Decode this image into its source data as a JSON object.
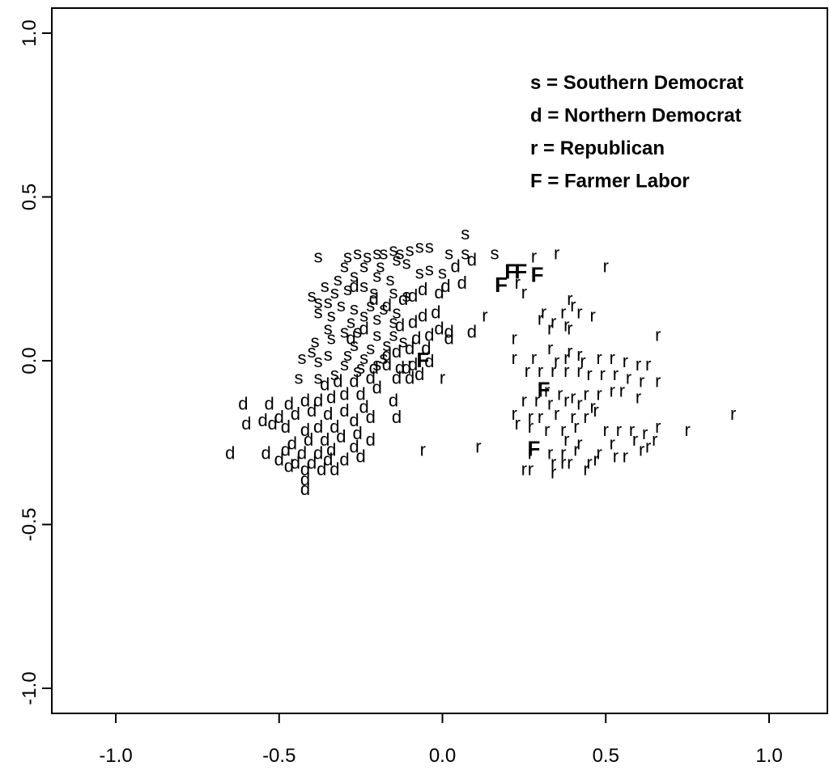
{
  "chart_data": {
    "type": "scatter",
    "title": "",
    "xlabel": "",
    "ylabel": "",
    "xlim": [
      -1.2,
      1.2
    ],
    "ylim": [
      -1.08,
      1.08
    ],
    "x_ticks": [
      "-1.0",
      "-0.5",
      "0.0",
      "0.5",
      "1.0"
    ],
    "y_ticks": [
      "1.0",
      "0.5",
      "0.0",
      "-0.5",
      "-1.0"
    ],
    "x_tick_values": [
      -1.0,
      -0.5,
      0.0,
      0.5,
      1.0
    ],
    "y_tick_values": [
      1.0,
      0.5,
      0.0,
      -0.5,
      -1.0
    ],
    "grid": false,
    "legend_position": "top-right",
    "legend": [
      {
        "symbol": "s",
        "label": "s = Southern Democrat"
      },
      {
        "symbol": "d",
        "label": "d = Northern Democrat"
      },
      {
        "symbol": "r",
        "label": "r = Republican"
      },
      {
        "symbol": "F",
        "label": "F = Farmer Labor"
      }
    ],
    "series": [
      {
        "symbol": "s",
        "points": [
          [
            0.07,
            0.39
          ],
          [
            0.16,
            0.33
          ],
          [
            0.07,
            0.33
          ],
          [
            0.02,
            0.33
          ],
          [
            -0.04,
            0.35
          ],
          [
            -0.07,
            0.35
          ],
          [
            -0.1,
            0.34
          ],
          [
            -0.13,
            0.33
          ],
          [
            -0.15,
            0.34
          ],
          [
            -0.18,
            0.33
          ],
          [
            -0.2,
            0.33
          ],
          [
            -0.23,
            0.32
          ],
          [
            -0.26,
            0.33
          ],
          [
            -0.29,
            0.32
          ],
          [
            -0.38,
            0.32
          ],
          [
            -0.3,
            0.29
          ],
          [
            -0.24,
            0.29
          ],
          [
            -0.19,
            0.29
          ],
          [
            -0.14,
            0.31
          ],
          [
            -0.11,
            0.3
          ],
          [
            -0.07,
            0.27
          ],
          [
            -0.04,
            0.28
          ],
          [
            0.0,
            0.27
          ],
          [
            -0.32,
            0.25
          ],
          [
            -0.27,
            0.26
          ],
          [
            -0.2,
            0.26
          ],
          [
            -0.16,
            0.25
          ],
          [
            -0.36,
            0.23
          ],
          [
            -0.33,
            0.21
          ],
          [
            -0.29,
            0.22
          ],
          [
            -0.24,
            0.23
          ],
          [
            -0.21,
            0.21
          ],
          [
            -0.15,
            0.21
          ],
          [
            -0.11,
            0.2
          ],
          [
            -0.4,
            0.2
          ],
          [
            -0.38,
            0.18
          ],
          [
            -0.35,
            0.18
          ],
          [
            -0.31,
            0.17
          ],
          [
            -0.27,
            0.16
          ],
          [
            -0.22,
            0.17
          ],
          [
            -0.18,
            0.16
          ],
          [
            -0.14,
            0.15
          ],
          [
            -0.38,
            0.15
          ],
          [
            -0.34,
            0.14
          ],
          [
            -0.28,
            0.12
          ],
          [
            -0.24,
            0.14
          ],
          [
            -0.2,
            0.13
          ],
          [
            -0.15,
            0.12
          ],
          [
            -0.35,
            0.1
          ],
          [
            -0.3,
            0.09
          ],
          [
            -0.26,
            0.09
          ],
          [
            -0.2,
            0.08
          ],
          [
            -0.15,
            0.08
          ],
          [
            -0.39,
            0.06
          ],
          [
            -0.34,
            0.07
          ],
          [
            -0.27,
            0.05
          ],
          [
            -0.22,
            0.04
          ],
          [
            -0.17,
            0.05
          ],
          [
            -0.12,
            0.06
          ],
          [
            -0.4,
            0.03
          ],
          [
            -0.35,
            0.02
          ],
          [
            -0.29,
            0.02
          ],
          [
            -0.24,
            0.01
          ],
          [
            -0.18,
            0.01
          ],
          [
            -0.43,
            0.01
          ],
          [
            -0.38,
            0.0
          ],
          [
            -0.3,
            -0.01
          ],
          [
            -0.25,
            -0.02
          ],
          [
            -0.2,
            -0.01
          ],
          [
            -0.44,
            -0.05
          ],
          [
            -0.38,
            -0.05
          ],
          [
            -0.33,
            -0.04
          ],
          [
            -0.26,
            -0.03
          ]
        ]
      },
      {
        "symbol": "d",
        "points": [
          [
            0.09,
            0.31
          ],
          [
            0.04,
            0.29
          ],
          [
            0.06,
            0.24
          ],
          [
            0.01,
            0.23
          ],
          [
            -0.01,
            0.21
          ],
          [
            -0.06,
            0.22
          ],
          [
            -0.09,
            0.2
          ],
          [
            -0.12,
            0.19
          ],
          [
            -0.02,
            0.15
          ],
          [
            -0.06,
            0.14
          ],
          [
            -0.09,
            0.12
          ],
          [
            -0.13,
            0.11
          ],
          [
            -0.01,
            0.1
          ],
          [
            0.02,
            0.09
          ],
          [
            -0.04,
            0.08
          ],
          [
            -0.08,
            0.07
          ],
          [
            0.09,
            0.09
          ],
          [
            0.02,
            0.07
          ],
          [
            -0.05,
            0.04
          ],
          [
            -0.1,
            0.04
          ],
          [
            -0.14,
            0.03
          ],
          [
            -0.04,
            0.0
          ],
          [
            -0.09,
            -0.01
          ],
          [
            -0.13,
            -0.02
          ],
          [
            -0.17,
            -0.01
          ],
          [
            -0.21,
            -0.02
          ],
          [
            -0.07,
            -0.04
          ],
          [
            -0.1,
            -0.05
          ],
          [
            -0.14,
            -0.05
          ],
          [
            -0.22,
            -0.05
          ],
          [
            -0.27,
            -0.06
          ],
          [
            -0.32,
            -0.06
          ],
          [
            -0.36,
            -0.07
          ],
          [
            -0.2,
            -0.08
          ],
          [
            -0.25,
            -0.1
          ],
          [
            -0.3,
            -0.1
          ],
          [
            -0.34,
            -0.11
          ],
          [
            -0.38,
            -0.12
          ],
          [
            -0.42,
            -0.12
          ],
          [
            -0.47,
            -0.13
          ],
          [
            -0.53,
            -0.13
          ],
          [
            -0.61,
            -0.13
          ],
          [
            -0.15,
            -0.12
          ],
          [
            -0.24,
            -0.14
          ],
          [
            -0.3,
            -0.15
          ],
          [
            -0.35,
            -0.16
          ],
          [
            -0.4,
            -0.15
          ],
          [
            -0.45,
            -0.16
          ],
          [
            -0.5,
            -0.17
          ],
          [
            -0.55,
            -0.18
          ],
          [
            -0.6,
            -0.19
          ],
          [
            -0.14,
            -0.17
          ],
          [
            -0.22,
            -0.17
          ],
          [
            -0.27,
            -0.18
          ],
          [
            -0.33,
            -0.2
          ],
          [
            -0.38,
            -0.2
          ],
          [
            -0.42,
            -0.21
          ],
          [
            -0.48,
            -0.2
          ],
          [
            -0.52,
            -0.19
          ],
          [
            -0.26,
            -0.22
          ],
          [
            -0.31,
            -0.23
          ],
          [
            -0.36,
            -0.24
          ],
          [
            -0.41,
            -0.24
          ],
          [
            -0.46,
            -0.25
          ],
          [
            -0.22,
            -0.24
          ],
          [
            -0.27,
            -0.26
          ],
          [
            -0.34,
            -0.27
          ],
          [
            -0.38,
            -0.28
          ],
          [
            -0.43,
            -0.28
          ],
          [
            -0.48,
            -0.27
          ],
          [
            -0.54,
            -0.28
          ],
          [
            -0.65,
            -0.28
          ],
          [
            -0.25,
            -0.29
          ],
          [
            -0.3,
            -0.3
          ],
          [
            -0.35,
            -0.3
          ],
          [
            -0.4,
            -0.31
          ],
          [
            -0.45,
            -0.31
          ],
          [
            -0.5,
            -0.3
          ],
          [
            -0.33,
            -0.33
          ],
          [
            -0.37,
            -0.33
          ],
          [
            -0.42,
            -0.33
          ],
          [
            -0.47,
            -0.32
          ],
          [
            -0.42,
            -0.36
          ],
          [
            -0.42,
            -0.39
          ],
          [
            -0.27,
            0.23
          ],
          [
            -0.21,
            0.19
          ],
          [
            -0.17,
            0.17
          ],
          [
            -0.24,
            0.1
          ],
          [
            -0.28,
            0.07
          ],
          [
            -0.17,
            0.02
          ],
          [
            -0.11,
            -0.02
          ]
        ]
      },
      {
        "symbol": "r",
        "points": [
          [
            0.28,
            0.32
          ],
          [
            0.35,
            0.33
          ],
          [
            0.5,
            0.29
          ],
          [
            0.23,
            0.24
          ],
          [
            0.25,
            0.21
          ],
          [
            0.39,
            0.19
          ],
          [
            0.4,
            0.17
          ],
          [
            0.31,
            0.15
          ],
          [
            0.37,
            0.15
          ],
          [
            0.42,
            0.15
          ],
          [
            0.46,
            0.14
          ],
          [
            0.13,
            0.14
          ],
          [
            0.3,
            0.13
          ],
          [
            0.34,
            0.12
          ],
          [
            0.38,
            0.11
          ],
          [
            0.33,
            0.1
          ],
          [
            0.39,
            0.1
          ],
          [
            0.66,
            0.08
          ],
          [
            0.22,
            0.07
          ],
          [
            0.33,
            0.04
          ],
          [
            0.39,
            0.03
          ],
          [
            0.42,
            0.02
          ],
          [
            0.22,
            0.01
          ],
          [
            0.28,
            0.01
          ],
          [
            0.35,
            0.0
          ],
          [
            0.38,
            0.01
          ],
          [
            0.43,
            0.0
          ],
          [
            0.48,
            0.01
          ],
          [
            0.52,
            0.01
          ],
          [
            0.56,
            0.0
          ],
          [
            0.6,
            -0.01
          ],
          [
            0.63,
            -0.01
          ],
          [
            0.26,
            -0.03
          ],
          [
            0.3,
            -0.03
          ],
          [
            0.34,
            -0.03
          ],
          [
            0.38,
            -0.03
          ],
          [
            0.42,
            -0.03
          ],
          [
            0.45,
            -0.04
          ],
          [
            0.49,
            -0.04
          ],
          [
            0.53,
            -0.04
          ],
          [
            0.57,
            -0.05
          ],
          [
            0.61,
            -0.06
          ],
          [
            0.66,
            -0.06
          ],
          [
            0.0,
            -0.05
          ],
          [
            0.32,
            -0.09
          ],
          [
            0.36,
            -0.1
          ],
          [
            0.4,
            -0.11
          ],
          [
            0.44,
            -0.1
          ],
          [
            0.48,
            -0.1
          ],
          [
            0.52,
            -0.09
          ],
          [
            0.55,
            -0.09
          ],
          [
            0.6,
            -0.11
          ],
          [
            0.25,
            -0.12
          ],
          [
            0.29,
            -0.12
          ],
          [
            0.33,
            -0.13
          ],
          [
            0.38,
            -0.12
          ],
          [
            0.42,
            -0.13
          ],
          [
            0.46,
            -0.14
          ],
          [
            0.22,
            -0.16
          ],
          [
            0.27,
            -0.17
          ],
          [
            0.3,
            -0.17
          ],
          [
            0.35,
            -0.16
          ],
          [
            0.4,
            -0.17
          ],
          [
            0.44,
            -0.17
          ],
          [
            0.47,
            -0.15
          ],
          [
            0.89,
            -0.16
          ],
          [
            0.23,
            -0.19
          ],
          [
            0.27,
            -0.2
          ],
          [
            0.32,
            -0.21
          ],
          [
            0.37,
            -0.21
          ],
          [
            0.41,
            -0.2
          ],
          [
            0.5,
            -0.21
          ],
          [
            0.54,
            -0.21
          ],
          [
            0.58,
            -0.21
          ],
          [
            0.62,
            -0.22
          ],
          [
            0.66,
            -0.2
          ],
          [
            0.75,
            -0.21
          ],
          [
            0.38,
            -0.24
          ],
          [
            0.42,
            -0.25
          ],
          [
            0.52,
            -0.25
          ],
          [
            0.59,
            -0.24
          ],
          [
            0.65,
            -0.24
          ],
          [
            -0.06,
            -0.27
          ],
          [
            0.11,
            -0.26
          ],
          [
            0.27,
            -0.28
          ],
          [
            0.33,
            -0.28
          ],
          [
            0.37,
            -0.28
          ],
          [
            0.41,
            -0.27
          ],
          [
            0.48,
            -0.28
          ],
          [
            0.53,
            -0.29
          ],
          [
            0.56,
            -0.29
          ],
          [
            0.61,
            -0.27
          ],
          [
            0.63,
            -0.26
          ],
          [
            0.34,
            -0.31
          ],
          [
            0.37,
            -0.31
          ],
          [
            0.39,
            -0.31
          ],
          [
            0.45,
            -0.31
          ],
          [
            0.47,
            -0.3
          ],
          [
            0.25,
            -0.33
          ],
          [
            0.27,
            -0.33
          ],
          [
            0.34,
            -0.34
          ],
          [
            0.44,
            -0.33
          ]
        ]
      },
      {
        "symbol": "F",
        "points": [
          [
            0.21,
            0.27
          ],
          [
            0.24,
            0.27
          ],
          [
            0.29,
            0.26
          ],
          [
            0.18,
            0.23
          ],
          [
            -0.06,
            -0.0
          ],
          [
            0.31,
            -0.09
          ],
          [
            0.28,
            -0.27
          ]
        ]
      }
    ]
  }
}
